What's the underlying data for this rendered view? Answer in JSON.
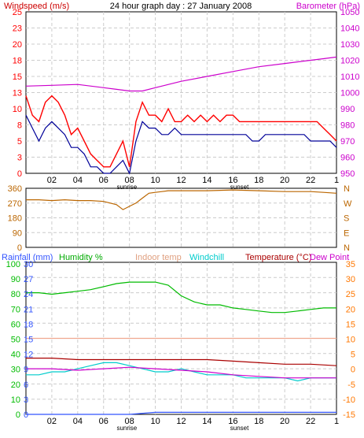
{
  "header": {
    "title": "24 hour graph day : 27 January 2008",
    "left_label": "Windspeed (m/s)",
    "right_label": "Barometer (hPa)"
  },
  "colors": {
    "red": "#ff0000",
    "navy": "#000099",
    "magenta": "#cc00cc",
    "brown": "#bb6600",
    "green": "#00bb00",
    "cyan": "#00cccc",
    "salmon": "#f0a890",
    "darkred": "#aa0000",
    "blue": "#3355ff",
    "orange": "#ff7700",
    "grid": "#cccccc"
  },
  "x_axis": {
    "ticks": [
      "02",
      "04",
      "06",
      "08",
      "10",
      "12",
      "14",
      "16",
      "18",
      "20",
      "22"
    ],
    "sunrise_label": "sunrise",
    "sunset_label": "sunset"
  },
  "chart_data": [
    {
      "type": "line",
      "panel": "wind_barometer",
      "x_unit": "hour",
      "left_axis": {
        "label": "Windspeed (m/s)",
        "ticks": [
          "25",
          "23",
          "20",
          "18",
          "15",
          "13",
          "10",
          "8",
          "5",
          "3",
          "0"
        ],
        "ylim": [
          0,
          25
        ]
      },
      "right_axis": {
        "label": "Barometer (hPa)",
        "ticks": [
          "1050",
          "1040",
          "1030",
          "1020",
          "1010",
          "1000",
          "990",
          "980",
          "970",
          "960",
          "950"
        ],
        "ylim": [
          950,
          1050
        ]
      },
      "series": [
        {
          "name": "Windspeed (m/s)",
          "axis": "left",
          "color": "#ff0000",
          "style": "gust",
          "x": [
            0,
            0.5,
            1,
            1.5,
            2,
            2.5,
            3,
            3.5,
            4,
            4.5,
            5,
            5.5,
            6,
            6.5,
            7,
            7.5,
            8,
            8.5,
            9,
            9.5,
            10,
            10.5,
            11,
            11.5,
            12,
            12.5,
            13,
            13.5,
            14,
            14.5,
            15,
            15.5,
            16,
            16.5,
            17,
            17.5,
            18,
            18.5,
            19,
            19.5,
            20,
            20.5,
            21,
            21.5,
            22,
            22.5,
            23,
            23.5,
            24
          ],
          "y": [
            12,
            9,
            8,
            11,
            12,
            11,
            9,
            6,
            7,
            5,
            3,
            2,
            1,
            1,
            3,
            5,
            1,
            8,
            11,
            9,
            9,
            8,
            10,
            8,
            8,
            9,
            8,
            9,
            8,
            9,
            8,
            9,
            9,
            8,
            8,
            8,
            8,
            8,
            8,
            8,
            8,
            8,
            8,
            8,
            8,
            8,
            7,
            6,
            5
          ]
        },
        {
          "name": "Windspeed average",
          "axis": "left",
          "color": "#000099",
          "style": "line",
          "x": [
            0,
            0.5,
            1,
            1.5,
            2,
            2.5,
            3,
            3.5,
            4,
            4.5,
            5,
            5.5,
            6,
            6.5,
            7,
            7.5,
            8,
            8.5,
            9,
            9.5,
            10,
            10.5,
            11,
            11.5,
            12,
            12.5,
            13,
            13.5,
            14,
            14.5,
            15,
            15.5,
            16,
            16.5,
            17,
            17.5,
            18,
            18.5,
            19,
            19.5,
            20,
            20.5,
            21,
            21.5,
            22,
            22.5,
            23,
            23.5,
            24
          ],
          "y": [
            9,
            7,
            5,
            7,
            8,
            7,
            6,
            4,
            4,
            3,
            1,
            1,
            0,
            0,
            1,
            2,
            0,
            5,
            8,
            7,
            7,
            6,
            6,
            7,
            6,
            6,
            6,
            6,
            6,
            6,
            6,
            6,
            6,
            6,
            6,
            5,
            5,
            6,
            6,
            6,
            6,
            6,
            6,
            6,
            5,
            5,
            5,
            5,
            4
          ]
        },
        {
          "name": "Barometer (hPa)",
          "axis": "right",
          "color": "#cc00cc",
          "style": "line",
          "x": [
            0,
            2,
            4,
            6,
            7,
            8,
            9,
            10,
            12,
            14,
            16,
            18,
            20,
            22,
            23,
            24
          ],
          "y": [
            1004,
            1004.5,
            1005,
            1003,
            1002,
            1001,
            1001,
            1003,
            1007,
            1010,
            1013,
            1016,
            1018,
            1020,
            1021,
            1022
          ]
        }
      ]
    },
    {
      "type": "line",
      "panel": "wind_direction",
      "x_unit": "hour",
      "left_axis": {
        "ticks": [
          "360",
          "270",
          "180",
          "90",
          "0"
        ],
        "ylim": [
          0,
          360
        ]
      },
      "right_axis": {
        "ticks": [
          "N",
          "W",
          "S",
          "E",
          "N"
        ]
      },
      "series": [
        {
          "name": "Wind direction",
          "axis": "left",
          "color": "#bb6600",
          "x": [
            0,
            1,
            2,
            3,
            4,
            5,
            6,
            7,
            7.5,
            8,
            8.5,
            9,
            9.5,
            10,
            10.5,
            11,
            12,
            14,
            16,
            18,
            20,
            22,
            23,
            24
          ],
          "y": [
            290,
            290,
            285,
            290,
            285,
            285,
            280,
            260,
            230,
            250,
            270,
            300,
            330,
            335,
            340,
            345,
            345,
            345,
            350,
            345,
            340,
            340,
            335,
            330
          ]
        }
      ]
    },
    {
      "type": "line",
      "panel": "temperature_humidity",
      "x_unit": "hour",
      "legend": [
        "Rainfall (mm)",
        "Humidity %",
        "Indoor temp",
        "Windchill",
        "Temperature (°C)",
        "Dew Point"
      ],
      "rainfall_axis": {
        "label": "Rainfall (mm)",
        "ticks": [
          "30",
          "27",
          "24",
          "21",
          "18",
          "15",
          "12",
          "9",
          "6",
          "3",
          "0"
        ]
      },
      "humidity_axis": {
        "label": "Humidity %",
        "ticks": [
          "100",
          "90",
          "80",
          "70",
          "60",
          "50",
          "40",
          "30",
          "20",
          "10",
          "0"
        ],
        "ylim": [
          0,
          100
        ]
      },
      "temperature_axis": {
        "label": "Temperature (°C)",
        "ticks": [
          "35",
          "30",
          "25",
          "20",
          "15",
          "10",
          "5",
          "0",
          "-5",
          "-10",
          "-15"
        ],
        "ylim": [
          -15,
          35
        ]
      },
      "series": [
        {
          "name": "Humidity %",
          "axis": "humidity",
          "color": "#00bb00",
          "x": [
            0,
            1,
            2,
            3,
            4,
            5,
            6,
            7,
            8,
            9,
            10,
            11,
            12,
            13,
            14,
            15,
            16,
            17,
            18,
            19,
            20,
            21,
            22,
            23,
            24
          ],
          "y": [
            80,
            80,
            79,
            80,
            81,
            82,
            84,
            86,
            87,
            87,
            87,
            85,
            78,
            74,
            72,
            72,
            70,
            69,
            68,
            67,
            67,
            68,
            69,
            70,
            70
          ]
        },
        {
          "name": "Indoor temp",
          "axis": "temperature",
          "color": "#f0a890",
          "x": [
            0,
            2,
            4,
            6,
            8,
            10,
            12,
            14,
            16,
            18,
            20,
            22,
            24
          ],
          "y": [
            10,
            10,
            10,
            10,
            10,
            10,
            10,
            10,
            10,
            10,
            10,
            10,
            10
          ]
        },
        {
          "name": "Temperature (°C)",
          "axis": "temperature",
          "color": "#aa0000",
          "x": [
            0,
            2,
            4,
            6,
            8,
            10,
            12,
            14,
            16,
            18,
            20,
            22,
            24
          ],
          "y": [
            3.5,
            3.5,
            3,
            3,
            3,
            3,
            3,
            3,
            2.5,
            2,
            1.5,
            1.5,
            1
          ]
        },
        {
          "name": "Windchill",
          "axis": "temperature",
          "color": "#00cccc",
          "x": [
            0,
            1,
            2,
            3,
            4,
            5,
            6,
            7,
            8,
            9,
            10,
            11,
            12,
            13,
            14,
            15,
            16,
            17,
            18,
            19,
            20,
            21,
            22,
            23,
            24
          ],
          "y": [
            -2,
            -2,
            -1,
            -1,
            0,
            1,
            2,
            2,
            1,
            0,
            -1,
            -1,
            0,
            -1,
            -2,
            -2,
            -2,
            -3,
            -3,
            -3,
            -3,
            -4,
            -3,
            -3,
            -3
          ]
        },
        {
          "name": "Dew Point",
          "axis": "temperature",
          "color": "#cc00cc",
          "x": [
            0,
            2,
            4,
            6,
            8,
            10,
            12,
            14,
            16,
            18,
            20,
            22,
            24
          ],
          "y": [
            0,
            0,
            -0.5,
            0,
            0.5,
            0,
            -0.5,
            -1,
            -2,
            -2.5,
            -3,
            -3,
            -3
          ]
        },
        {
          "name": "Rainfall (mm)",
          "axis": "rainfall",
          "color": "#3355ff",
          "x": [
            0,
            6,
            8,
            10,
            12,
            24
          ],
          "y": [
            0,
            0,
            0,
            0.4,
            0.4,
            0.4
          ]
        }
      ]
    }
  ]
}
